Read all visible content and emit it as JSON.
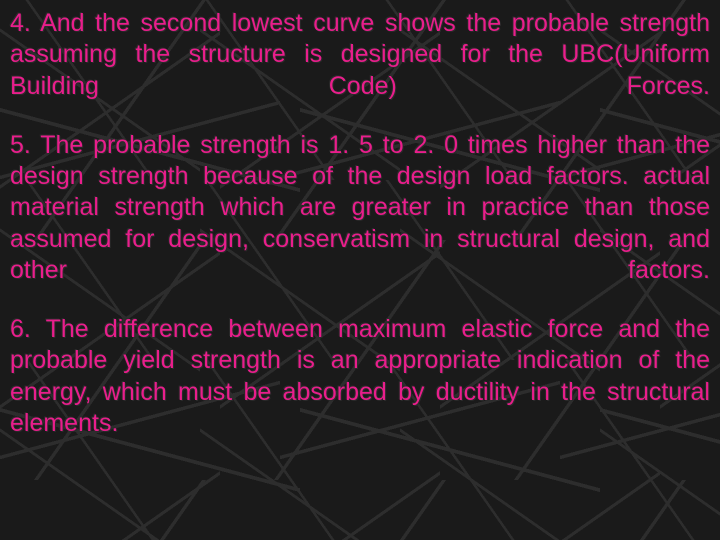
{
  "background_color": "#1a1a1a",
  "line_color": "#3a3a3a",
  "text_color": "#e91e8c",
  "font_family": "Arial, sans-serif",
  "paragraphs": [
    {
      "id": "para-4",
      "fontsize": 25,
      "text": "4. And the second lowest curve shows the probable strength assuming the structure is designed for the UBC(Uniform Building Code) Forces."
    },
    {
      "id": "para-5",
      "fontsize": 25,
      "text": "5. The probable strength is  1. 5 to 2. 0 times higher than the design strength because of the design load factors. actual material strength which are greater in practice than those assumed for design, conservatism in structural design, and other factors."
    },
    {
      "id": "para-6",
      "fontsize": 25,
      "text": "6. The difference between maximum elastic force and the probable yield strength is an appropriate indication of the energy, which must be absorbed by ductility in the structural elements."
    }
  ]
}
